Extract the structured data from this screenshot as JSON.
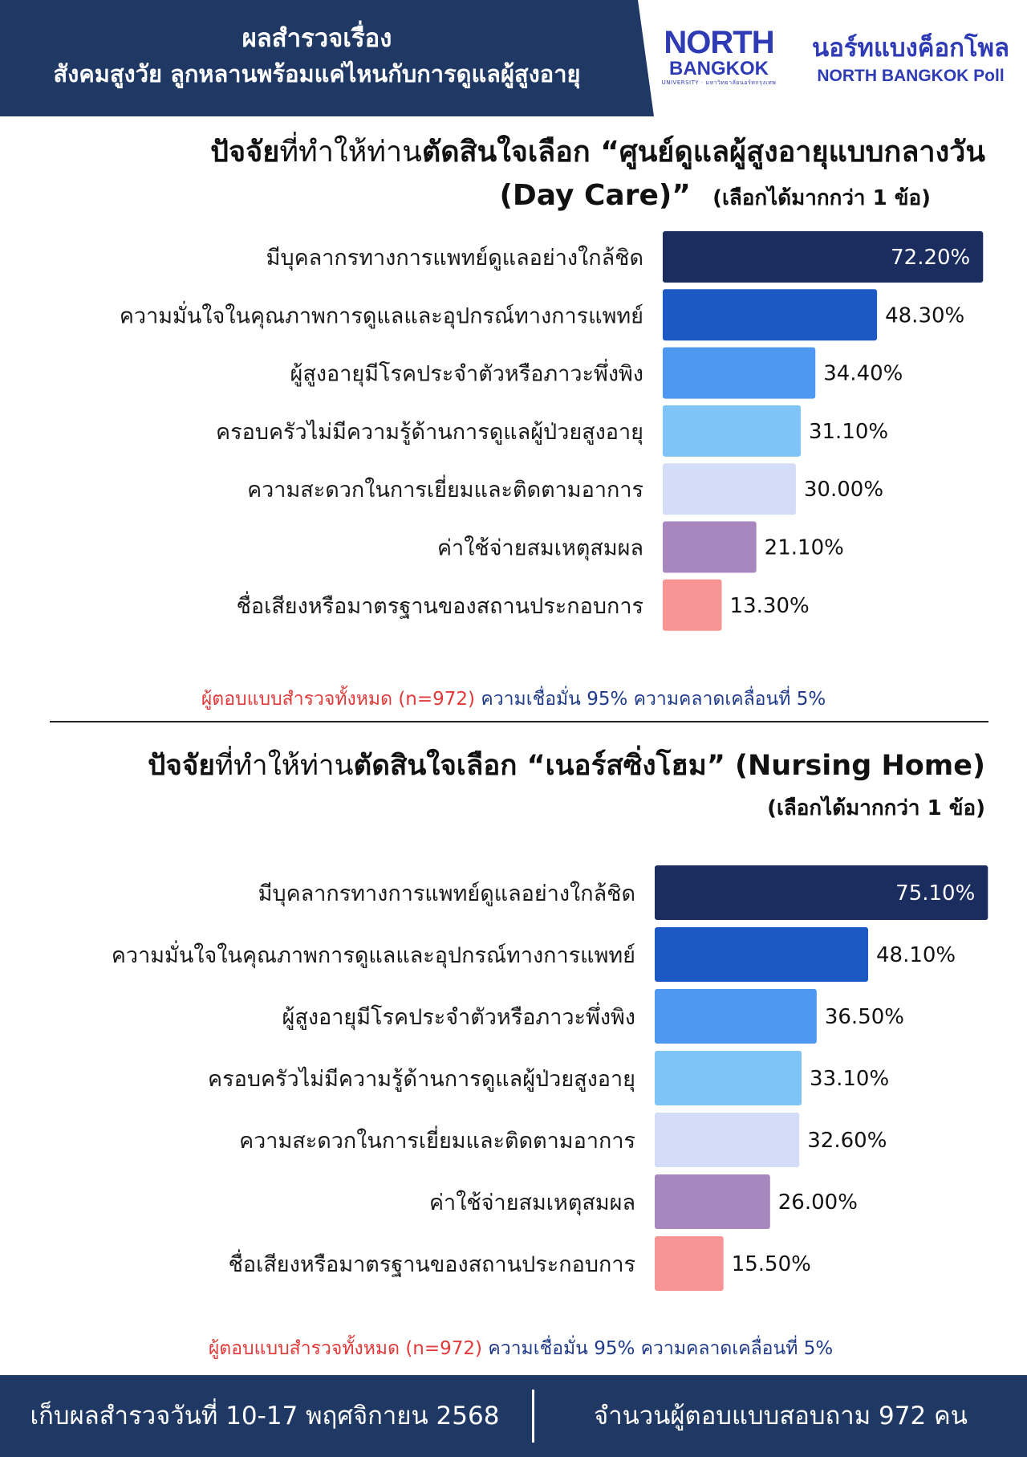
{
  "header": {
    "title_line1": "ผลสำรวจเรื่อง",
    "title_line2": "สังคมสูงวัย ลูกหลานพร้อมแค่ไหนกับการดูแลผู้สูงอายุ",
    "logo_line1": "NORTH",
    "logo_line2": "BANGKOK",
    "logo_line3": "UNIVERSITY · มหาวิทยาลัยนอร์ทกรุงเทพ",
    "poll_name_th": "นอร์ทแบงค็อกโพล",
    "poll_name_en": "NORTH BANGKOK Poll"
  },
  "colors": {
    "header_bg": "#1f3864",
    "brand_blue": "#2e3bb5",
    "note_red": "#e03a3a",
    "note_blue": "#1f3a8a",
    "bar_colors": [
      "#1b2d5e",
      "#1d59c4",
      "#4f98f2",
      "#7ec4f7",
      "#d3ddf8",
      "#a886be",
      "#f79595"
    ]
  },
  "chart_data": [
    {
      "type": "bar",
      "orientation": "horizontal",
      "title_part1": "ปัจจัย",
      "title_part2": "ที่ทำให้ท่าน",
      "title_part3": "ตัดสินใจเลือก “ศูนย์ดูแลผู้สูงอายุแบบกลางวัน",
      "title_part4": "(Day Care)”",
      "title_part5": "(เลือกได้มากกว่า 1 ข้อ)",
      "categories": [
        "มีบุคลากรทางการแพทย์ดูแลอย่างใกล้ชิด",
        "ความมั่นใจในคุณภาพการดูแลและอุปกรณ์ทางการแพทย์",
        "ผู้สูงอายุมีโรคประจำตัวหรือภาวะพึ่งพิง",
        "ครอบครัวไม่มีความรู้ด้านการดูแลผู้ป่วยสูงอายุ",
        "ความสะดวกในการเยี่ยมและติดตามอาการ",
        "ค่าใช้จ่ายสมเหตุสมผล",
        "ชื่อเสียงหรือมาตรฐานของสถานประกอบการ"
      ],
      "values": [
        72.2,
        48.3,
        34.4,
        31.1,
        30.0,
        21.1,
        13.3
      ],
      "value_labels": [
        "72.20%",
        "48.30%",
        "34.40%",
        "31.10%",
        "30.00%",
        "21.10%",
        "13.30%"
      ],
      "unit": "%",
      "grid": false,
      "legend": "none"
    },
    {
      "type": "bar",
      "orientation": "horizontal",
      "title_part1": "ปัจจัย",
      "title_part2": "ที่ทำให้ท่าน",
      "title_part3": "ตัดสินใจเลือก “เนอร์สซิ่งโฮม” (Nursing Home)",
      "title_part4": "",
      "title_part5": "(เลือกได้มากกว่า 1 ข้อ)",
      "categories": [
        "มีบุคลากรทางการแพทย์ดูแลอย่างใกล้ชิด",
        "ความมั่นใจในคุณภาพการดูแลและอุปกรณ์ทางการแพทย์",
        "ผู้สูงอายุมีโรคประจำตัวหรือภาวะพึ่งพิง",
        "ครอบครัวไม่มีความรู้ด้านการดูแลผู้ป่วยสูงอายุ",
        "ความสะดวกในการเยี่ยมและติดตามอาการ",
        "ค่าใช้จ่ายสมเหตุสมผล",
        "ชื่อเสียงหรือมาตรฐานของสถานประกอบการ"
      ],
      "values": [
        75.1,
        48.1,
        36.5,
        33.1,
        32.6,
        26.0,
        15.5
      ],
      "value_labels": [
        "75.10%",
        "48.10%",
        "36.50%",
        "33.10%",
        "32.60%",
        "26.00%",
        "15.50%"
      ],
      "unit": "%",
      "grid": false,
      "legend": "none"
    }
  ],
  "notes": [
    {
      "red": "ผู้ตอบแบบสำรวจทั้งหมด (n=972)",
      "blue": " ความเชื่อมั่น 95% ความคลาดเคลื่อนที่ 5%"
    },
    {
      "red": "ผู้ตอบแบบสำรวจทั้งหมด (n=972)",
      "blue": " ความเชื่อมั่น 95% ความคลาดเคลื่อนที่ 5%"
    }
  ],
  "footer": {
    "left": "เก็บผลสำรวจวันที่ 10-17 พฤศจิกายน 2568",
    "right": "จำนวนผู้ตอบแบบสอบถาม 972 คน"
  }
}
